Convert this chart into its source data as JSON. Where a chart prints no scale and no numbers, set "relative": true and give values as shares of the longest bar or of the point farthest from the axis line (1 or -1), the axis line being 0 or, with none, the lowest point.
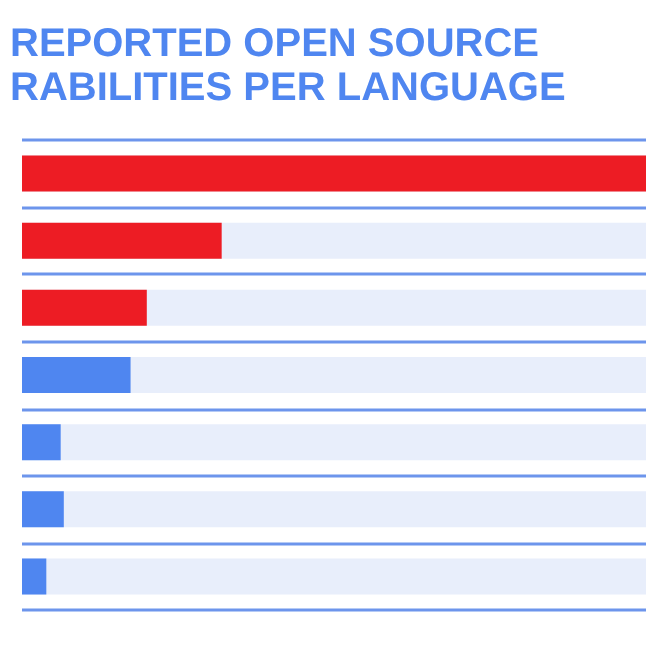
{
  "chart_data": {
    "type": "bar",
    "title": "REPORTED OPEN SOURCE\nRABILITIES PER LANGUAGE",
    "orientation": "horizontal",
    "relative": true,
    "grid": "y",
    "categories": [
      null,
      null,
      null,
      null,
      null,
      null,
      null
    ],
    "values": [
      1,
      0.32,
      0.2,
      0.174,
      0.062,
      0.067,
      0.039
    ],
    "colors": [
      "#ed1c24",
      "#ed1c24",
      "#ed1c24",
      "#4f86f0",
      "#4f86f0",
      "#4f86f0",
      "#4f86f0"
    ]
  }
}
